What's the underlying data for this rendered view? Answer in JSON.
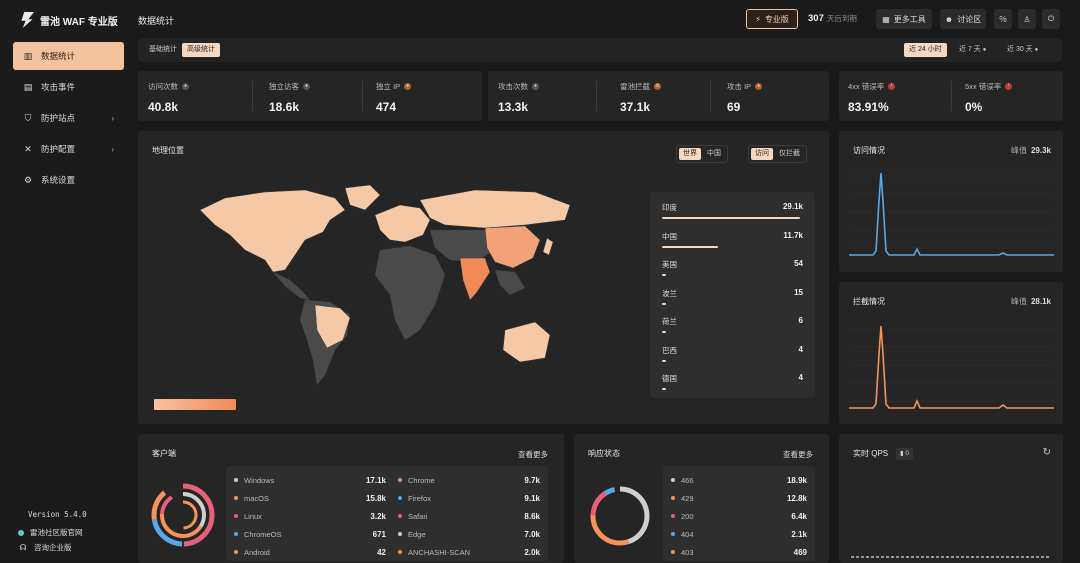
{
  "sidebar": {
    "logo_text": "雷池 WAF 专业版",
    "items": [
      {
        "label": "数据统计",
        "icon": "bar-chart-icon",
        "active": true
      },
      {
        "label": "攻击事件",
        "icon": "event-icon"
      },
      {
        "label": "防护站点",
        "icon": "shield-icon",
        "has_children": true
      },
      {
        "label": "防护配置",
        "icon": "tools-icon",
        "has_children": true
      },
      {
        "label": "系统设置",
        "icon": "gear-icon"
      }
    ],
    "version": "Version 5.4.0",
    "links": [
      "雷池社区版官网",
      "咨询企业版"
    ]
  },
  "header": {
    "title": "数据统计",
    "pro_badge": "专业版",
    "days_value": "307",
    "days_text": "天后到期",
    "buttons": [
      "更多工具",
      "讨论区"
    ]
  },
  "subtabs": [
    "基础统计",
    "高级统计"
  ],
  "ranges": [
    "近 24 小时",
    "近 7 天",
    "近 30 天"
  ],
  "stats": {
    "group1": [
      {
        "label": "访问次数",
        "value": "40.8k"
      },
      {
        "label": "独立访客",
        "value": "18.6k"
      },
      {
        "label": "独立 IP",
        "value": "474"
      }
    ],
    "group2": [
      {
        "label": "攻击次数",
        "value": "13.3k"
      },
      {
        "label": "雷池拦截",
        "value": "37.1k"
      },
      {
        "label": "攻击 IP",
        "value": "69"
      }
    ],
    "group3": [
      {
        "label": "4xx 错误率",
        "value": "83.91%"
      },
      {
        "label": "5xx 错误率",
        "value": "0%"
      }
    ]
  },
  "geo": {
    "title": "地理位置",
    "scope_toggle": [
      "世界",
      "中国"
    ],
    "mode_toggle": [
      "访问",
      "仅拦截"
    ],
    "countries": [
      {
        "name": "印度",
        "value": "29.1k",
        "share": 1.0
      },
      {
        "name": "中国",
        "value": "11.7k",
        "share": 0.4
      },
      {
        "name": "美国",
        "value": "54",
        "share": 0.03
      },
      {
        "name": "波兰",
        "value": "15",
        "share": 0.03
      },
      {
        "name": "荷兰",
        "value": "6",
        "share": 0.03
      },
      {
        "name": "巴西",
        "value": "4",
        "share": 0.03
      },
      {
        "name": "德国",
        "value": "4",
        "share": 0.03
      }
    ]
  },
  "visits": {
    "title": "访问情况",
    "peak_label": "峰值",
    "peak_value": "29.3k",
    "color": "#5aa9e6"
  },
  "blocks": {
    "title": "拦截情况",
    "peak_label": "峰值",
    "peak_value": "28.1k",
    "color": "#f5935a"
  },
  "clients": {
    "title": "客户端",
    "more": "查看更多",
    "items": [
      {
        "name": "Windows",
        "value": "17.1k",
        "color": "#cfcfcf"
      },
      {
        "name": "macOS",
        "value": "15.8k",
        "color": "#f5935a"
      },
      {
        "name": "Linux",
        "value": "3.2k",
        "color": "#e8607a"
      },
      {
        "name": "ChromeOS",
        "value": "671",
        "color": "#5aa9e6"
      },
      {
        "name": "Android",
        "value": "42",
        "color": "#f5935a"
      },
      {
        "name": "Chrome",
        "value": "9.7k",
        "color": "#f5935a"
      },
      {
        "name": "Firefox",
        "value": "9.1k",
        "color": "#5aa9e6"
      },
      {
        "name": "Safari",
        "value": "8.6k",
        "color": "#e8607a"
      },
      {
        "name": "Edge",
        "value": "7.0k",
        "color": "#cfcfcf"
      },
      {
        "name": "ANCHASHI-SCAN",
        "value": "2.0k",
        "color": "#f5935a"
      }
    ]
  },
  "responses": {
    "title": "响应状态",
    "more": "查看更多",
    "items": [
      {
        "name": "466",
        "value": "18.9k",
        "color": "#cfcfcf"
      },
      {
        "name": "429",
        "value": "12.8k",
        "color": "#f5935a"
      },
      {
        "name": "200",
        "value": "6.4k",
        "color": "#e8607a"
      },
      {
        "name": "404",
        "value": "2.1k",
        "color": "#5aa9e6"
      },
      {
        "name": "403",
        "value": "469",
        "color": "#f5935a"
      }
    ]
  },
  "qps": {
    "title": "实时 QPS",
    "value": "0"
  }
}
